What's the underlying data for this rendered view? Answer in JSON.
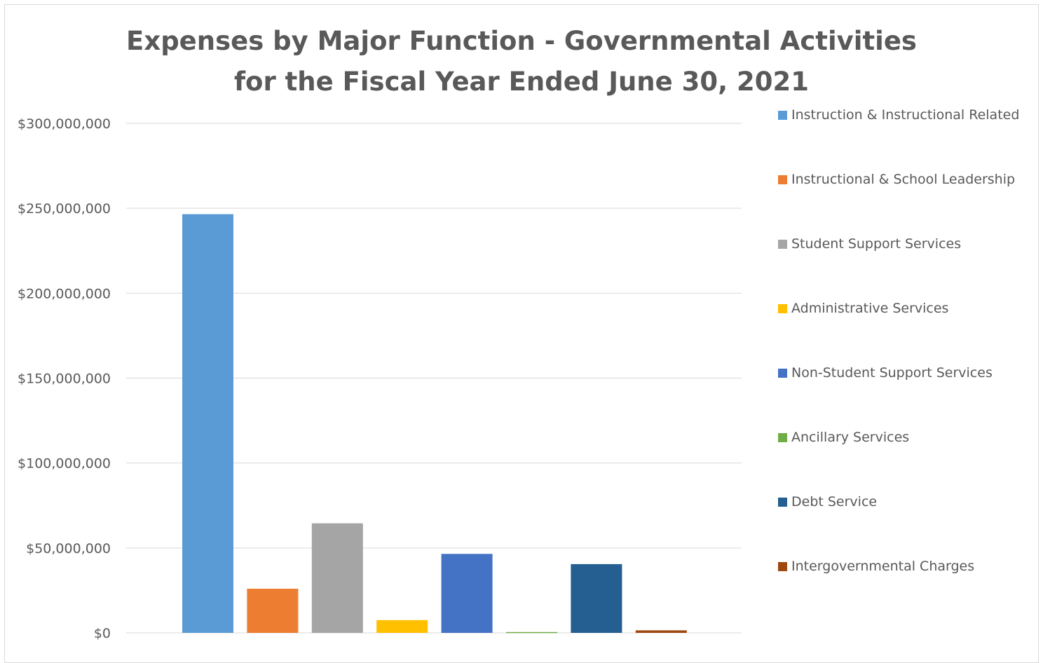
{
  "chart_data": {
    "type": "bar",
    "title_lines": [
      "Expenses by Major Function - Governmental Activities",
      "for the Fiscal Year Ended June 30, 2021"
    ],
    "xlabel": "",
    "ylabel": "",
    "ylim": [
      0,
      300000000
    ],
    "y_ticks": [
      0,
      50000000,
      100000000,
      150000000,
      200000000,
      250000000,
      300000000
    ],
    "y_tick_labels": [
      "$0",
      "$50,000,000",
      "$100,000,000",
      "$150,000,000",
      "$200,000,000",
      "$250,000,000",
      "$300,000,000"
    ],
    "grid": true,
    "legend_position": "right",
    "series": [
      {
        "name": "Instruction & Instructional Related",
        "value": 246500000,
        "color": "#5b9bd5"
      },
      {
        "name": "Instructional & School Leadership",
        "value": 26000000,
        "color": "#ed7d31"
      },
      {
        "name": "Student Support Services",
        "value": 64500000,
        "color": "#a5a5a5"
      },
      {
        "name": "Administrative Services",
        "value": 7500000,
        "color": "#ffc000"
      },
      {
        "name": "Non-Student Support Services",
        "value": 46500000,
        "color": "#4472c4"
      },
      {
        "name": "Ancillary Services",
        "value": 500000,
        "color": "#70ad47"
      },
      {
        "name": "Debt Service",
        "value": 40500000,
        "color": "#255e91"
      },
      {
        "name": "Intergovernmental Charges",
        "value": 1500000,
        "color": "#9e480e"
      }
    ]
  }
}
